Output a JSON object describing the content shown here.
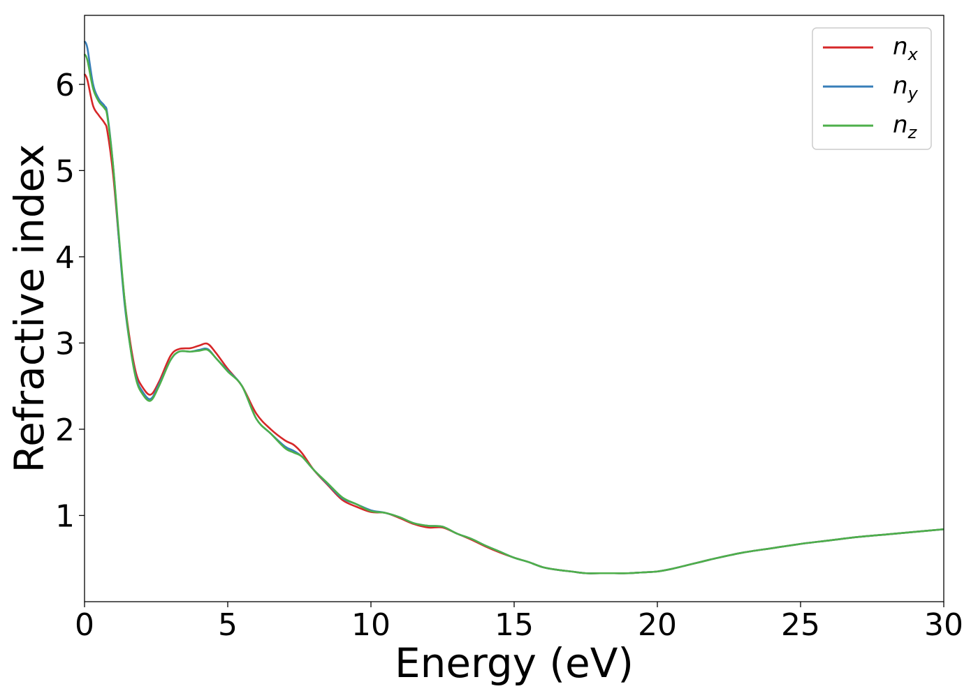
{
  "chart_data": {
    "type": "line",
    "title": "",
    "xlabel": "Energy (eV)",
    "ylabel": "Refractive index",
    "xlim": [
      0,
      30
    ],
    "ylim": [
      0.0,
      6.8
    ],
    "xticks": [
      0,
      5,
      10,
      15,
      20,
      25,
      30
    ],
    "xtick_labels": [
      "0",
      "5",
      "10",
      "15",
      "20",
      "25",
      "30"
    ],
    "yticks": [
      1,
      2,
      3,
      4,
      5,
      6
    ],
    "ytick_labels": [
      "1",
      "2",
      "3",
      "4",
      "5",
      "6"
    ],
    "grid": false,
    "legend_position": "top-right",
    "series": [
      {
        "name": "n",
        "subscript": "x",
        "color": "#d62728",
        "x": [
          0,
          0.1,
          0.3,
          0.5,
          0.7,
          0.8,
          1.0,
          1.2,
          1.4,
          1.6,
          1.8,
          2.0,
          2.3,
          2.6,
          3.0,
          3.3,
          3.7,
          4.0,
          4.3,
          4.6,
          5.0,
          5.5,
          6.0,
          6.5,
          7.0,
          7.3,
          7.6,
          8.0,
          8.5,
          9.0,
          9.5,
          10.0,
          10.5,
          11.0,
          11.5,
          12.0,
          12.5,
          13.0,
          13.5,
          14.0,
          14.5,
          15.0,
          15.5,
          16.0,
          16.5,
          17.0,
          17.5,
          18.0,
          18.5,
          19.0,
          19.5,
          20.0,
          20.5,
          21.0,
          21.5,
          22.0,
          23.0,
          24.0,
          25.0,
          26.0,
          27.0,
          28.0,
          29.0,
          30.0
        ],
        "y": [
          6.12,
          6.05,
          5.75,
          5.64,
          5.55,
          5.45,
          4.95,
          4.2,
          3.5,
          3.0,
          2.65,
          2.5,
          2.4,
          2.55,
          2.85,
          2.93,
          2.94,
          2.97,
          2.99,
          2.88,
          2.7,
          2.5,
          2.18,
          2.0,
          1.87,
          1.82,
          1.72,
          1.53,
          1.35,
          1.18,
          1.1,
          1.04,
          1.03,
          0.97,
          0.9,
          0.86,
          0.86,
          0.79,
          0.72,
          0.64,
          0.57,
          0.51,
          0.46,
          0.4,
          0.37,
          0.35,
          0.33,
          0.33,
          0.33,
          0.33,
          0.34,
          0.35,
          0.38,
          0.42,
          0.46,
          0.5,
          0.57,
          0.62,
          0.67,
          0.71,
          0.75,
          0.78,
          0.81,
          0.84
        ]
      },
      {
        "name": "n",
        "subscript": "y",
        "color": "#377eb8",
        "x": [
          0,
          0.1,
          0.3,
          0.5,
          0.7,
          0.8,
          1.0,
          1.2,
          1.4,
          1.6,
          1.8,
          2.0,
          2.3,
          2.6,
          3.0,
          3.3,
          3.7,
          4.0,
          4.3,
          4.6,
          5.0,
          5.5,
          6.0,
          6.5,
          7.0,
          7.3,
          7.6,
          8.0,
          8.5,
          9.0,
          9.5,
          10.0,
          10.5,
          11.0,
          11.5,
          12.0,
          12.5,
          13.0,
          13.5,
          14.0,
          14.5,
          15.0,
          15.5,
          16.0,
          16.5,
          17.0,
          17.5,
          18.0,
          18.5,
          19.0,
          19.5,
          20.0,
          20.5,
          21.0,
          21.5,
          22.0,
          23.0,
          24.0,
          25.0,
          26.0,
          27.0,
          28.0,
          29.0,
          30.0
        ],
        "y": [
          6.5,
          6.42,
          6.0,
          5.83,
          5.75,
          5.65,
          5.05,
          4.2,
          3.45,
          2.95,
          2.6,
          2.45,
          2.35,
          2.52,
          2.8,
          2.9,
          2.9,
          2.92,
          2.93,
          2.82,
          2.68,
          2.5,
          2.12,
          1.95,
          1.8,
          1.75,
          1.68,
          1.53,
          1.36,
          1.2,
          1.13,
          1.06,
          1.03,
          0.98,
          0.91,
          0.88,
          0.87,
          0.79,
          0.73,
          0.65,
          0.58,
          0.51,
          0.46,
          0.4,
          0.37,
          0.35,
          0.33,
          0.33,
          0.33,
          0.33,
          0.34,
          0.35,
          0.38,
          0.42,
          0.46,
          0.5,
          0.57,
          0.62,
          0.67,
          0.71,
          0.75,
          0.78,
          0.81,
          0.84
        ]
      },
      {
        "name": "n",
        "subscript": "z",
        "color": "#4daf4a",
        "x": [
          0,
          0.1,
          0.3,
          0.5,
          0.7,
          0.8,
          1.0,
          1.2,
          1.4,
          1.6,
          1.8,
          2.0,
          2.3,
          2.6,
          3.0,
          3.3,
          3.7,
          4.0,
          4.3,
          4.6,
          5.0,
          5.5,
          6.0,
          6.5,
          7.0,
          7.3,
          7.6,
          8.0,
          8.5,
          9.0,
          9.5,
          10.0,
          10.5,
          11.0,
          11.5,
          12.0,
          12.5,
          13.0,
          13.5,
          14.0,
          14.5,
          15.0,
          15.5,
          16.0,
          16.5,
          17.0,
          17.5,
          18.0,
          18.5,
          19.0,
          19.5,
          20.0,
          20.5,
          21.0,
          21.5,
          22.0,
          23.0,
          24.0,
          25.0,
          26.0,
          27.0,
          28.0,
          29.0,
          30.0
        ],
        "y": [
          6.35,
          6.28,
          5.95,
          5.8,
          5.72,
          5.62,
          5.05,
          4.25,
          3.5,
          2.95,
          2.58,
          2.42,
          2.33,
          2.5,
          2.8,
          2.9,
          2.9,
          2.91,
          2.92,
          2.82,
          2.67,
          2.5,
          2.12,
          1.95,
          1.78,
          1.73,
          1.68,
          1.53,
          1.37,
          1.21,
          1.13,
          1.05,
          1.03,
          0.98,
          0.91,
          0.88,
          0.87,
          0.79,
          0.73,
          0.65,
          0.58,
          0.51,
          0.46,
          0.4,
          0.37,
          0.35,
          0.33,
          0.33,
          0.33,
          0.33,
          0.34,
          0.35,
          0.38,
          0.42,
          0.46,
          0.5,
          0.57,
          0.62,
          0.67,
          0.71,
          0.75,
          0.78,
          0.81,
          0.84
        ]
      }
    ]
  }
}
